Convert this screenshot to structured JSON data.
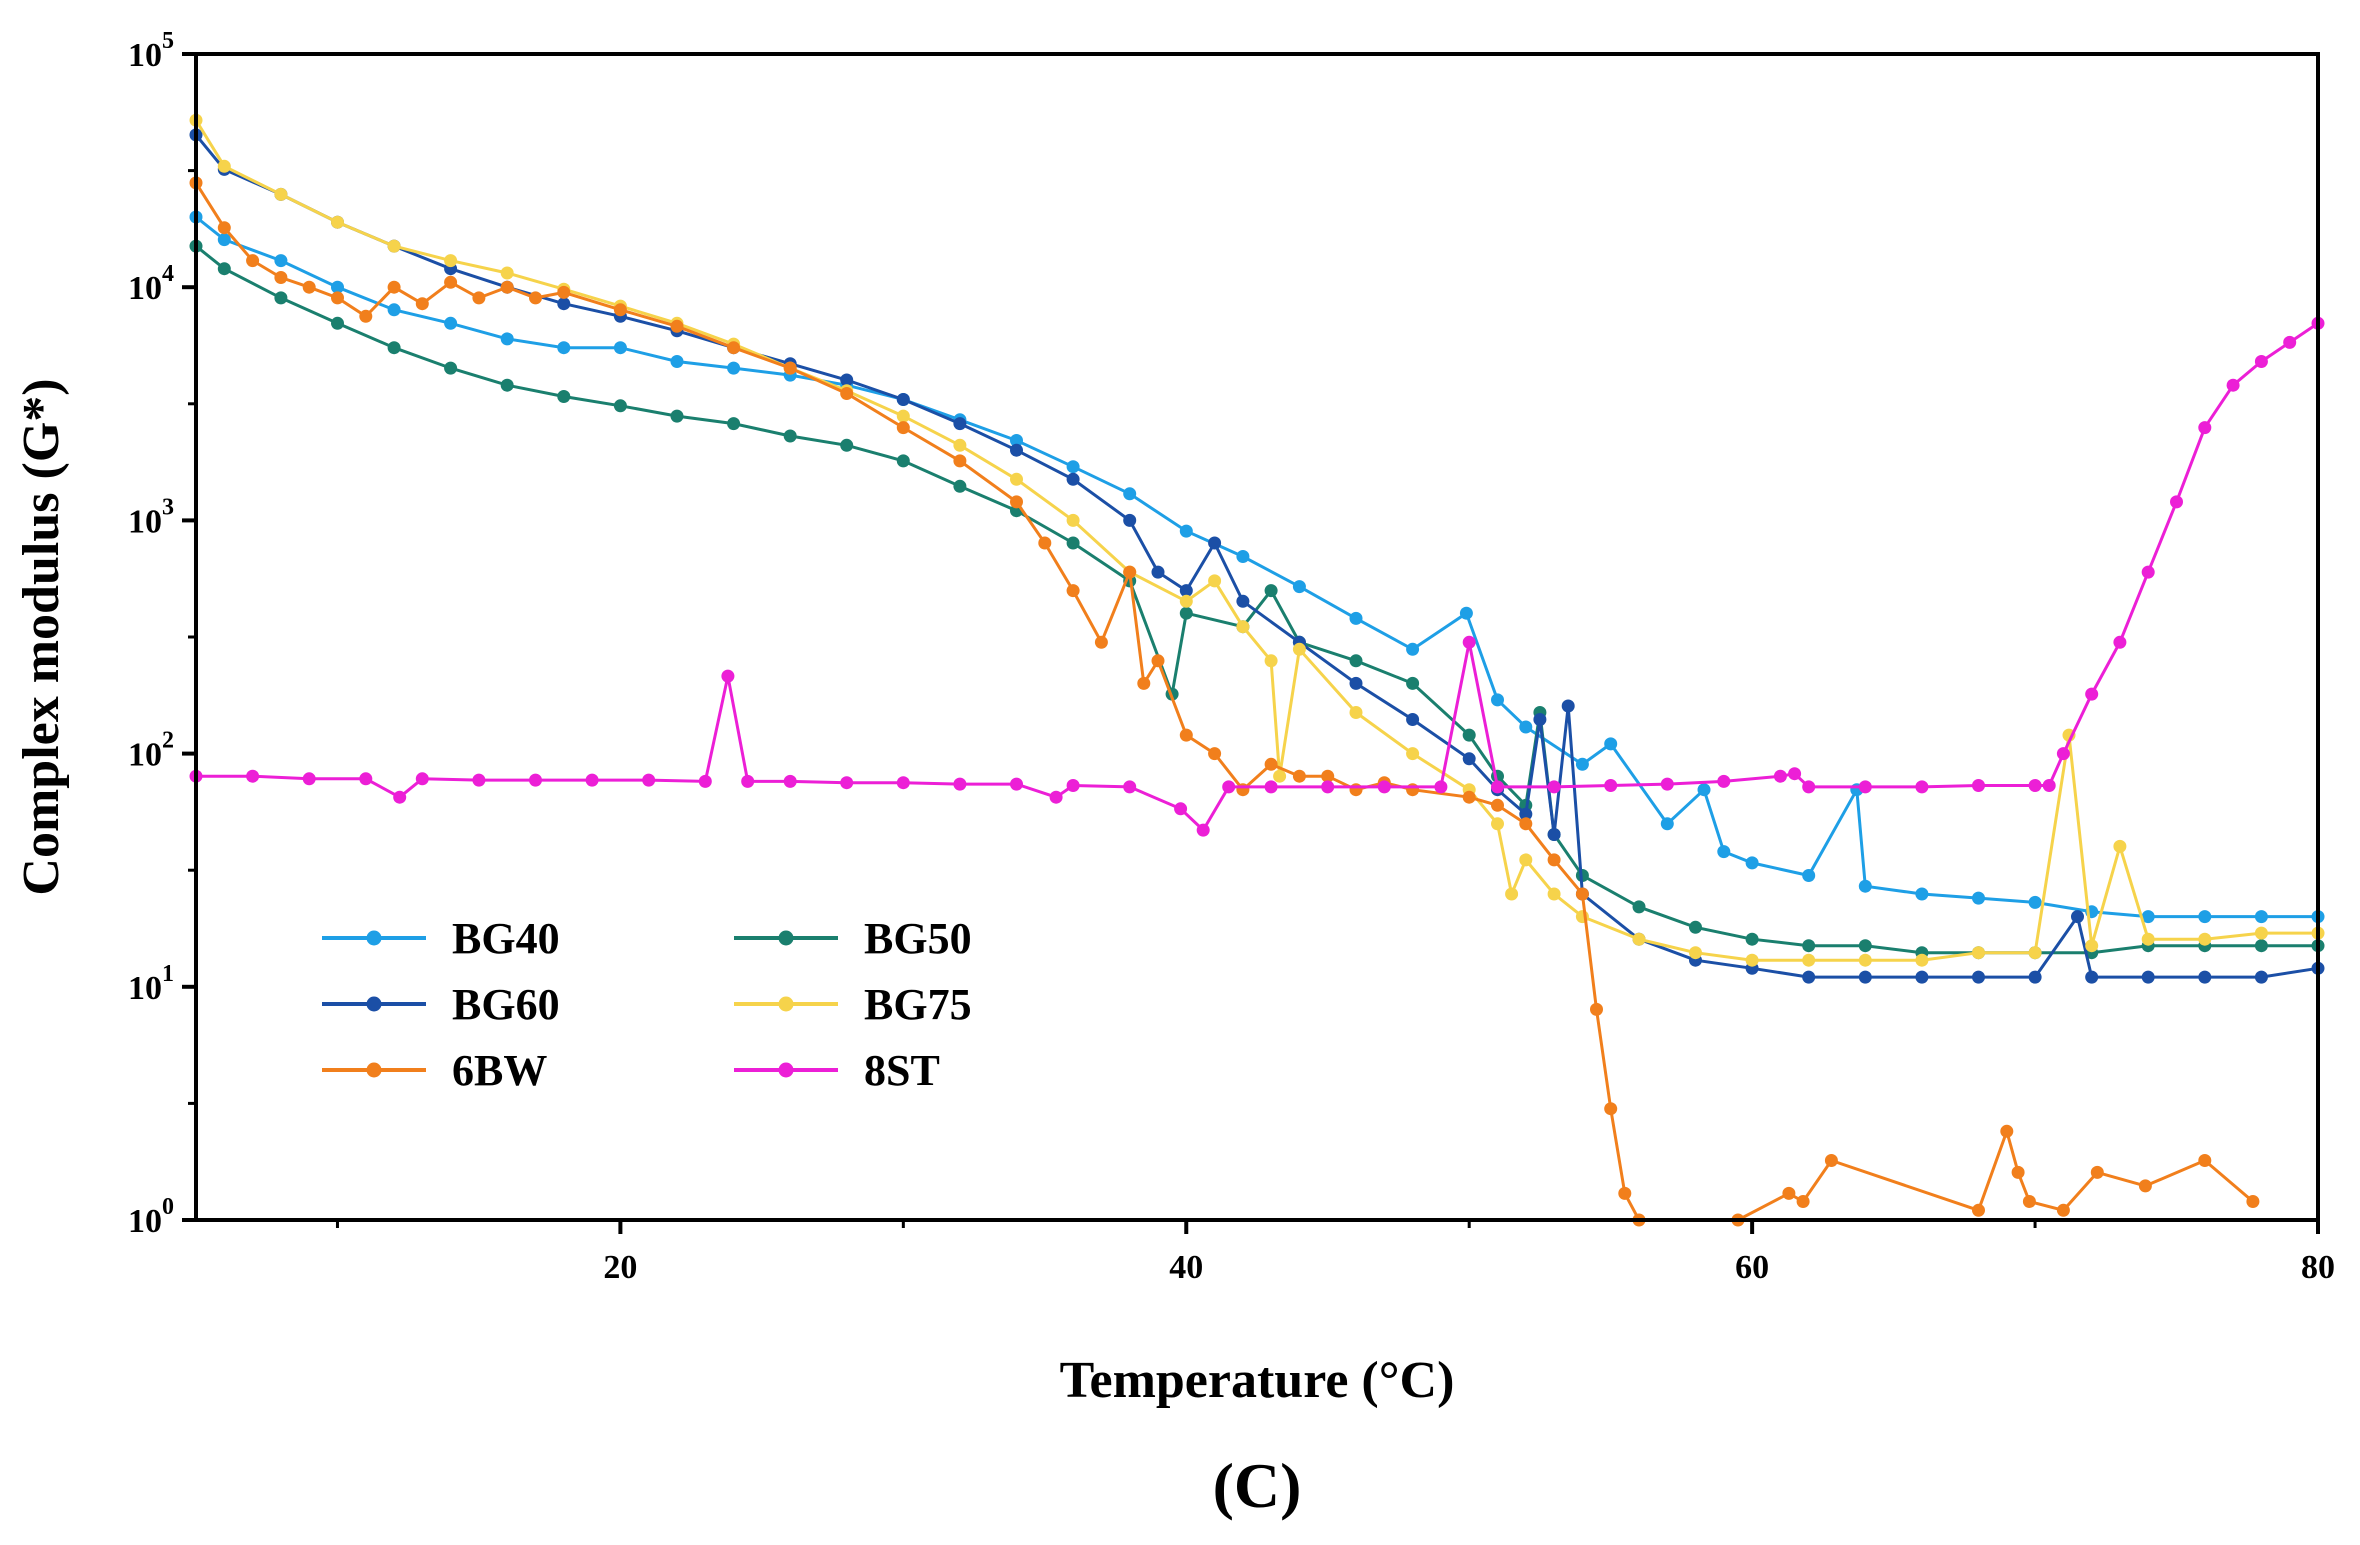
{
  "chart_data": {
    "type": "line",
    "title": "",
    "panel_label": "(C)",
    "xlabel": "Temperature (°C)",
    "ylabel": "Complex modulus (G*)",
    "xlim": [
      5,
      80
    ],
    "ylim": [
      1,
      100000
    ],
    "yscale": "log",
    "x_ticks": [
      20,
      40,
      60,
      80
    ],
    "x_tick_labels": [
      "20",
      "40",
      "60",
      "80"
    ],
    "y_ticks": [
      {
        "value": 1,
        "base": "10",
        "exp": "0"
      },
      {
        "value": 10,
        "base": "10",
        "exp": "1"
      },
      {
        "value": 100,
        "base": "10",
        "exp": "2"
      },
      {
        "value": 1000,
        "base": "10",
        "exp": "3"
      },
      {
        "value": 10000,
        "base": "10",
        "exp": "4"
      },
      {
        "value": 100000,
        "base": "10",
        "exp": "5"
      }
    ],
    "legend": {
      "position": "bottom-left",
      "columns": 2
    },
    "series": [
      {
        "name": "BG40",
        "color": "#1e9fe6",
        "x": [
          5,
          6,
          8,
          10,
          12,
          14,
          16,
          18,
          20,
          22,
          24,
          26,
          28,
          30,
          32,
          34,
          36,
          38,
          40,
          42,
          44,
          46,
          48,
          49.9,
          51,
          52,
          54,
          55,
          57,
          58.3,
          59,
          60,
          62,
          63.7,
          64,
          66,
          68,
          70,
          72,
          74,
          76,
          78,
          80
        ],
        "y": [
          20000,
          16000,
          13000,
          10000,
          8000,
          7000,
          6000,
          5500,
          5500,
          4800,
          4500,
          4200,
          3800,
          3300,
          2700,
          2200,
          1700,
          1300,
          900,
          700,
          520,
          380,
          280,
          400,
          170,
          130,
          90,
          110,
          50,
          70,
          38,
          34,
          30,
          70,
          27,
          25,
          24,
          23,
          21,
          20,
          20,
          20,
          20
        ]
      },
      {
        "name": "BG50",
        "color": "#1a7f6e",
        "x": [
          5,
          6,
          8,
          10,
          12,
          14,
          16,
          18,
          20,
          22,
          24,
          26,
          28,
          30,
          32,
          34,
          36,
          38,
          39.5,
          40,
          42,
          43,
          44,
          46,
          48,
          50,
          51,
          52,
          52.5,
          53,
          54,
          56,
          58,
          60,
          62,
          64,
          66,
          68,
          70,
          72,
          74,
          76,
          78,
          80
        ],
        "y": [
          15000,
          12000,
          9000,
          7000,
          5500,
          4500,
          3800,
          3400,
          3100,
          2800,
          2600,
          2300,
          2100,
          1800,
          1400,
          1100,
          800,
          550,
          180,
          400,
          350,
          500,
          300,
          250,
          200,
          120,
          80,
          60,
          150,
          45,
          30,
          22,
          18,
          16,
          15,
          15,
          14,
          14,
          14,
          14,
          15,
          15,
          15,
          15
        ]
      },
      {
        "name": "BG60",
        "color": "#1b4fa6",
        "x": [
          5,
          6,
          8,
          10,
          12,
          14,
          16,
          18,
          20,
          22,
          24,
          26,
          28,
          30,
          32,
          34,
          36,
          38,
          39,
          40,
          41,
          42,
          44,
          46,
          48,
          50,
          51,
          52,
          52.5,
          53,
          53.5,
          54,
          56,
          58,
          60,
          62,
          64,
          66,
          68,
          70,
          71.5,
          72,
          74,
          76,
          78,
          80
        ],
        "y": [
          45000,
          32000,
          25000,
          19000,
          15000,
          12000,
          10000,
          8500,
          7500,
          6500,
          5500,
          4700,
          4000,
          3300,
          2600,
          2000,
          1500,
          1000,
          600,
          500,
          800,
          450,
          300,
          200,
          140,
          95,
          70,
          55,
          140,
          45,
          160,
          25,
          16,
          13,
          12,
          11,
          11,
          11,
          11,
          11,
          20,
          11,
          11,
          11,
          11,
          12
        ]
      },
      {
        "name": "BG75",
        "color": "#f6d34b",
        "x": [
          5,
          6,
          8,
          10,
          12,
          14,
          16,
          18,
          20,
          22,
          24,
          26,
          28,
          30,
          32,
          34,
          36,
          38,
          40,
          41,
          42,
          43,
          43.3,
          44,
          46,
          48,
          50,
          51,
          51.5,
          52,
          53,
          54,
          56,
          58,
          60,
          62,
          64,
          66,
          68,
          70,
          71.2,
          72,
          73,
          74,
          76,
          78,
          80
        ],
        "y": [
          52000,
          33000,
          25000,
          19000,
          15000,
          13000,
          11500,
          9800,
          8300,
          7000,
          5700,
          4500,
          3600,
          2800,
          2100,
          1500,
          1000,
          600,
          450,
          550,
          350,
          250,
          80,
          280,
          150,
          100,
          70,
          50,
          25,
          35,
          25,
          20,
          16,
          14,
          13,
          13,
          13,
          13,
          14,
          14,
          120,
          15,
          40,
          16,
          16,
          17,
          17
        ]
      },
      {
        "name": "6BW",
        "color": "#f17f1c",
        "x": [
          5,
          6,
          7,
          8,
          9,
          10,
          11,
          12,
          13,
          14,
          15,
          16,
          17,
          18,
          20,
          22,
          24,
          26,
          28,
          30,
          32,
          34,
          35,
          36,
          37,
          38,
          38.5,
          39,
          40,
          41,
          42,
          43,
          44,
          45,
          46,
          47,
          48,
          50,
          51,
          52,
          53,
          54,
          54.5,
          55,
          55.5,
          56,
          59.5,
          61.3,
          61.8,
          62.8,
          68,
          69,
          69.4,
          69.8,
          71,
          72.2,
          73.9,
          76,
          77.7
        ],
        "y": [
          28000,
          18000,
          13000,
          11000,
          10000,
          9000,
          7500,
          10000,
          8500,
          10500,
          9000,
          10000,
          9000,
          9500,
          8000,
          6800,
          5500,
          4500,
          3500,
          2500,
          1800,
          1200,
          800,
          500,
          300,
          600,
          200,
          250,
          120,
          100,
          70,
          90,
          80,
          80,
          70,
          75,
          70,
          65,
          60,
          50,
          35,
          25,
          8,
          3,
          1.3,
          1,
          1,
          1.3,
          1.2,
          1.8,
          1.1,
          2.4,
          1.6,
          1.2,
          1.1,
          1.6,
          1.4,
          1.8,
          1.2
        ]
      },
      {
        "name": "8ST",
        "color": "#ec1fd6",
        "x": [
          5,
          7,
          9,
          11,
          12.2,
          13,
          15,
          17,
          19,
          21,
          23,
          23.8,
          24.5,
          26,
          28,
          30,
          32,
          34,
          35.4,
          36,
          38,
          39.8,
          40.6,
          41.5,
          43,
          45,
          47,
          49,
          50,
          51,
          53,
          55,
          57,
          59,
          61,
          61.5,
          62,
          64,
          66,
          68,
          70,
          70.5,
          71,
          72,
          73,
          74,
          75,
          76,
          77,
          78,
          79,
          80
        ],
        "y": [
          80,
          80,
          78,
          78,
          65,
          78,
          77,
          77,
          77,
          77,
          76,
          215,
          76,
          76,
          75,
          75,
          74,
          74,
          65,
          73,
          72,
          58,
          47,
          72,
          72,
          72,
          72,
          72,
          300,
          72,
          72,
          73,
          74,
          76,
          80,
          82,
          72,
          72,
          72,
          73,
          73,
          73,
          100,
          180,
          300,
          600,
          1200,
          2500,
          3800,
          4800,
          5800,
          7000
        ]
      }
    ]
  }
}
